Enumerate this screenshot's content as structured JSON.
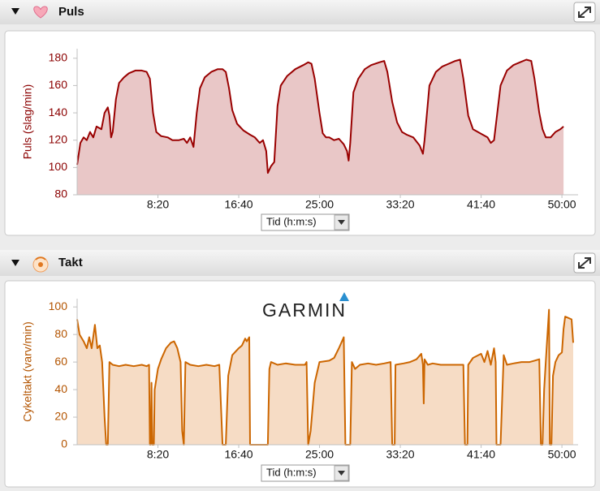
{
  "chart_data": [
    {
      "type": "area",
      "title": "Puls",
      "y_label": "Puls (slag/min)",
      "x_label": "Tid (h:m:s)",
      "color": "#990000",
      "fill": "#e9c7c7",
      "tick_color": "#8b0000",
      "xlim": [
        0,
        3100
      ],
      "xticks": [
        {
          "value": 500,
          "label": "8:20"
        },
        {
          "value": 1000,
          "label": "16:40"
        },
        {
          "value": 1500,
          "label": "25:00"
        },
        {
          "value": 2000,
          "label": "33:20"
        },
        {
          "value": 2500,
          "label": "41:40"
        },
        {
          "value": 3000,
          "label": "50:00"
        }
      ],
      "ylim": [
        80,
        187
      ],
      "yticks": [
        80,
        100,
        120,
        140,
        160,
        180
      ],
      "x": [
        0,
        20,
        40,
        60,
        80,
        100,
        120,
        150,
        170,
        190,
        200,
        210,
        220,
        240,
        260,
        290,
        320,
        360,
        400,
        430,
        450,
        470,
        490,
        520,
        560,
        590,
        630,
        660,
        680,
        700,
        720,
        740,
        760,
        790,
        830,
        870,
        900,
        920,
        940,
        960,
        990,
        1030,
        1070,
        1100,
        1130,
        1150,
        1170,
        1180,
        1200,
        1220,
        1240,
        1260,
        1300,
        1350,
        1400,
        1430,
        1450,
        1470,
        1500,
        1520,
        1540,
        1560,
        1590,
        1620,
        1650,
        1670,
        1680,
        1690,
        1710,
        1740,
        1780,
        1820,
        1870,
        1900,
        1920,
        1950,
        1980,
        2010,
        2040,
        2080,
        2120,
        2140,
        2150,
        2180,
        2220,
        2260,
        2300,
        2340,
        2370,
        2390,
        2420,
        2450,
        2480,
        2510,
        2540,
        2560,
        2580,
        2620,
        2660,
        2700,
        2740,
        2780,
        2810,
        2830,
        2860,
        2880,
        2900,
        2930,
        2960,
        2990,
        3010
      ],
      "values": [
        102,
        118,
        122,
        120,
        126,
        122,
        130,
        128,
        140,
        144,
        138,
        122,
        126,
        150,
        162,
        166,
        169,
        171,
        171,
        170,
        165,
        140,
        126,
        123,
        122,
        120,
        120,
        121,
        118,
        122,
        115,
        140,
        158,
        166,
        170,
        172,
        172,
        170,
        158,
        142,
        132,
        127,
        124,
        122,
        118,
        120,
        112,
        96,
        101,
        104,
        145,
        160,
        167,
        172,
        175,
        177,
        176,
        165,
        140,
        125,
        122,
        122,
        120,
        121,
        117,
        112,
        105,
        118,
        155,
        165,
        172,
        175,
        177,
        178,
        170,
        148,
        133,
        126,
        124,
        122,
        116,
        110,
        120,
        160,
        170,
        174,
        176,
        178,
        179,
        165,
        138,
        128,
        126,
        124,
        122,
        118,
        120,
        160,
        171,
        175,
        177,
        179,
        178,
        165,
        140,
        128,
        122,
        122,
        126,
        128,
        130
      ]
    },
    {
      "type": "area",
      "title": "Takt",
      "y_label": "Cykeltakt (varv/min)",
      "x_label": "Tid (h:m:s)",
      "logo": "GARMIN",
      "color": "#cc6600",
      "fill": "#f6dcc5",
      "tick_color": "#b35400",
      "xlim": [
        0,
        3100
      ],
      "xticks": [
        {
          "value": 500,
          "label": "8:20"
        },
        {
          "value": 1000,
          "label": "16:40"
        },
        {
          "value": 1500,
          "label": "25:00"
        },
        {
          "value": 2000,
          "label": "33:20"
        },
        {
          "value": 2500,
          "label": "41:40"
        },
        {
          "value": 3000,
          "label": "50:00"
        }
      ],
      "ylim": [
        0,
        106
      ],
      "yticks": [
        0,
        20,
        40,
        60,
        80,
        100
      ],
      "x": [
        0,
        15,
        40,
        60,
        75,
        90,
        110,
        125,
        140,
        155,
        170,
        180,
        190,
        200,
        220,
        260,
        300,
        350,
        400,
        430,
        445,
        450,
        455,
        460,
        465,
        475,
        480,
        500,
        520,
        550,
        580,
        600,
        620,
        640,
        650,
        660,
        670,
        700,
        750,
        800,
        850,
        880,
        900,
        920,
        935,
        960,
        1000,
        1020,
        1040,
        1050,
        1065,
        1070,
        1110,
        1180,
        1190,
        1200,
        1240,
        1290,
        1350,
        1410,
        1420,
        1430,
        1445,
        1470,
        1500,
        1560,
        1590,
        1620,
        1650,
        1660,
        1690,
        1700,
        1720,
        1750,
        1800,
        1850,
        1900,
        1940,
        1950,
        1965,
        1970,
        2020,
        2060,
        2100,
        2130,
        2140,
        2145,
        2150,
        2170,
        2200,
        2250,
        2300,
        2350,
        2390,
        2400,
        2415,
        2420,
        2450,
        2500,
        2520,
        2540,
        2560,
        2580,
        2590,
        2595,
        2620,
        2640,
        2660,
        2700,
        2750,
        2800,
        2830,
        2860,
        2870,
        2880,
        2890,
        2900,
        2920,
        2925,
        2935,
        2945,
        2960,
        2980,
        3000,
        3010,
        3020,
        3060,
        3070
      ],
      "values": [
        91,
        80,
        75,
        70,
        78,
        70,
        87,
        70,
        72,
        60,
        20,
        0,
        0,
        60,
        58,
        57,
        58,
        57,
        58,
        57,
        58,
        0,
        0,
        45,
        0,
        0,
        40,
        55,
        62,
        70,
        74,
        75,
        70,
        60,
        10,
        0,
        60,
        58,
        57,
        58,
        57,
        58,
        0,
        0,
        50,
        65,
        70,
        72,
        77,
        75,
        78,
        0,
        0,
        0,
        55,
        60,
        58,
        59,
        58,
        58,
        60,
        0,
        10,
        45,
        60,
        61,
        63,
        70,
        78,
        0,
        0,
        60,
        55,
        58,
        59,
        58,
        59,
        60,
        0,
        0,
        58,
        59,
        60,
        62,
        66,
        58,
        30,
        62,
        58,
        59,
        58,
        58,
        58,
        58,
        0,
        0,
        58,
        63,
        66,
        60,
        68,
        58,
        70,
        60,
        0,
        0,
        65,
        58,
        59,
        60,
        60,
        61,
        62,
        0,
        0,
        40,
        60,
        98,
        0,
        0,
        50,
        60,
        65,
        67,
        84,
        93,
        91,
        74
      ]
    }
  ]
}
